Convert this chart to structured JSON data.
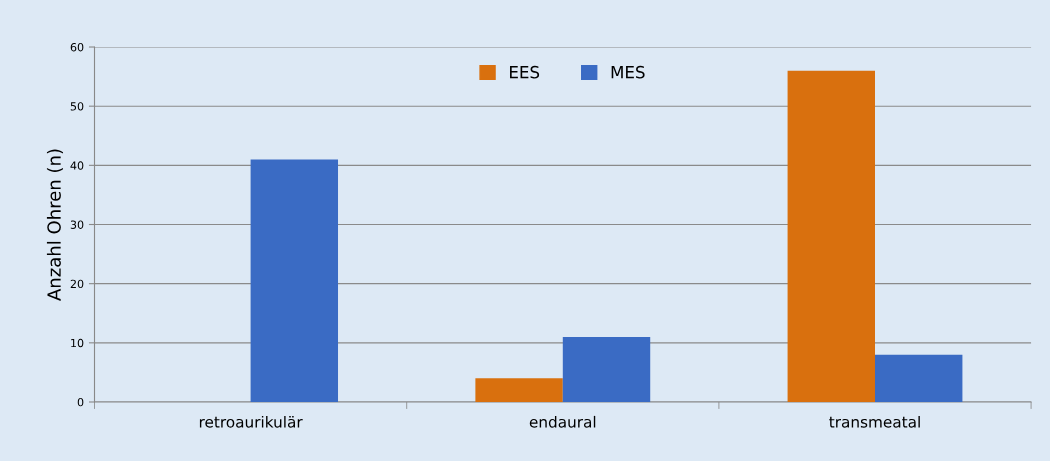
{
  "chart_data": {
    "type": "bar",
    "ylabel": "Anzahl Ohren (n)",
    "categories": [
      "retroaurikulär",
      "endaural",
      "transmeatal"
    ],
    "series": [
      {
        "name": "EES",
        "color": "#d9700e",
        "values": [
          0,
          4,
          56
        ]
      },
      {
        "name": "MES",
        "color": "#3a6bc4",
        "values": [
          41,
          11,
          8
        ]
      }
    ],
    "ylim": [
      0,
      60
    ],
    "yticks": [
      0,
      10,
      20,
      30,
      40,
      50,
      60
    ],
    "grid": "y",
    "legend": "top"
  }
}
